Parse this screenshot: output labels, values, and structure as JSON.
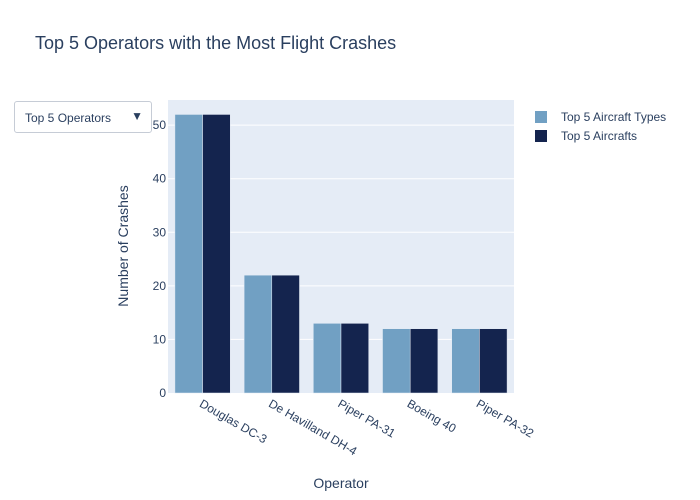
{
  "title": "Top 5 Operators with the Most Flight Crashes",
  "dropdown": {
    "selected": "Top 5 Operators",
    "arrow": "▼"
  },
  "legend": [
    {
      "name": "Top 5 Aircraft Types",
      "color": "#71a0c3"
    },
    {
      "name": "Top 5 Aircrafts",
      "color": "#14244e"
    }
  ],
  "colors": {
    "plot_bg": "#e5ecf6",
    "grid": "#ffffff",
    "text": "#2a3f5f"
  },
  "chart_data": {
    "type": "bar",
    "title": "Top 5 Operators with the Most Flight Crashes",
    "xlabel": "Operator",
    "ylabel": "Number of Crashes",
    "categories": [
      "Douglas DC-3",
      "De Havilland DH-4",
      "Piper PA-31",
      "Boeing 40",
      "Piper PA-32"
    ],
    "series": [
      {
        "name": "Top 5 Aircraft Types",
        "values": [
          52,
          22,
          13,
          12,
          12
        ]
      },
      {
        "name": "Top 5 Aircrafts",
        "values": [
          52,
          22,
          13,
          12,
          12
        ]
      }
    ],
    "yticks": [
      0,
      10,
      20,
      30,
      40,
      50
    ],
    "ylim": [
      0,
      54.7
    ],
    "grid": true,
    "legend_position": "top-right"
  }
}
